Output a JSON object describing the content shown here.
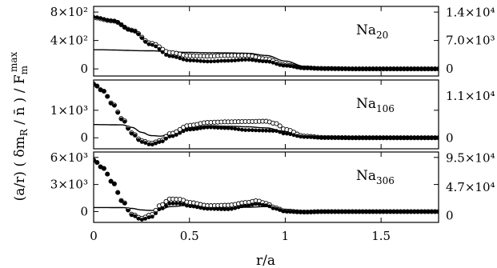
{
  "chart_data": {
    "type": "scatter",
    "xlabel": "r/a",
    "ylabel": "(a/r) ( δm_R / n̄ ) / F_m^max",
    "ylabel_parts": {
      "main": "(a/r) ( δm",
      "sub_R": "R",
      "mid": " / n̄ ) / F",
      "sub_m": "m",
      "sup_max": "max"
    },
    "xlim": [
      0,
      1.8
    ],
    "x_ticks": [
      0,
      0.5,
      1,
      1.5
    ],
    "x_tick_labels": [
      "0",
      "0.5",
      "1",
      "1.5"
    ],
    "grid": false,
    "panels": [
      {
        "label": "Na20",
        "label_base": "Na",
        "label_sub": "20",
        "ylim_left": [
          -100,
          880
        ],
        "left_ticks": [
          0,
          400,
          800
        ],
        "left_tick_labels": [
          "0",
          "4×10²",
          "8×10²"
        ],
        "ylim_right": [
          -1800,
          15500
        ],
        "right_ticks": [
          0,
          7000,
          14000
        ],
        "right_tick_labels": [
          "0",
          "7.0×10³",
          "1.4×10⁴"
        ],
        "series": [
          {
            "marker": "filled-circle",
            "x": [
              0,
              0.1,
              0.2,
              0.3,
              0.4,
              0.5,
              0.6,
              0.7,
              0.8,
              0.9,
              1.0,
              1.1,
              1.2,
              1.4,
              1.6,
              1.8
            ],
            "y": [
              730,
              680,
              540,
              340,
              180,
              120,
              105,
              115,
              130,
              105,
              45,
              15,
              5,
              0,
              0,
              0
            ]
          },
          {
            "marker": "open-circle",
            "x": [
              0,
              0.1,
              0.2,
              0.3,
              0.4,
              0.5,
              0.6,
              0.7,
              0.8,
              0.9,
              1.0,
              1.1,
              1.2,
              1.4,
              1.6,
              1.8
            ],
            "y": [
              720,
              675,
              545,
              360,
              230,
              185,
              180,
              190,
              190,
              140,
              55,
              15,
              5,
              0,
              0,
              0
            ]
          },
          {
            "marker": "line",
            "x": [
              0,
              0.3,
              0.4,
              0.5,
              0.6,
              0.7,
              0.8,
              0.9,
              1.0,
              1.1,
              1.2,
              1.4,
              1.6,
              1.8
            ],
            "y": [
              270,
              255,
              240,
              232,
              228,
              225,
              220,
              190,
              110,
              35,
              10,
              2,
              0,
              0
            ]
          }
        ]
      },
      {
        "label": "Na106",
        "label_base": "Na",
        "label_sub": "106",
        "ylim_left": [
          -400,
          2100
        ],
        "left_ticks": [
          0,
          1000
        ],
        "left_tick_labels": [
          "0",
          "1×10³"
        ],
        "ylim_right": [
          -2800,
          15200
        ],
        "right_ticks": [
          0,
          11000
        ],
        "right_tick_labels": [
          "0",
          "1.1×10⁴"
        ],
        "series": [
          {
            "marker": "filled-circle",
            "x": [
              0,
              0.05,
              0.1,
              0.15,
              0.2,
              0.25,
              0.3,
              0.35,
              0.4,
              0.5,
              0.6,
              0.7,
              0.8,
              0.9,
              0.95,
              1.0,
              1.1,
              1.2,
              1.4,
              1.6,
              1.8
            ],
            "y": [
              1950,
              1700,
              1200,
              650,
              150,
              -150,
              -250,
              -150,
              50,
              300,
              380,
              350,
              280,
              260,
              250,
              150,
              30,
              5,
              0,
              0,
              0
            ]
          },
          {
            "marker": "open-circle",
            "x": [
              0,
              0.05,
              0.1,
              0.15,
              0.2,
              0.25,
              0.3,
              0.35,
              0.4,
              0.5,
              0.6,
              0.7,
              0.8,
              0.9,
              0.95,
              1.0,
              1.1,
              1.2,
              1.4,
              1.6,
              1.8
            ],
            "y": [
              1950,
              1700,
              1220,
              680,
              180,
              -110,
              -200,
              -100,
              150,
              450,
              560,
              580,
              590,
              600,
              520,
              300,
              60,
              10,
              0,
              0,
              0
            ]
          },
          {
            "marker": "line",
            "x": [
              0,
              0.15,
              0.2,
              0.25,
              0.3,
              0.35,
              0.4,
              0.5,
              0.6,
              0.7,
              0.8,
              0.9,
              1.0,
              1.1,
              1.2,
              1.4,
              1.6,
              1.8
            ],
            "y": [
              480,
              470,
              380,
              200,
              80,
              60,
              150,
              360,
              440,
              420,
              400,
              360,
              220,
              60,
              10,
              0,
              0,
              0
            ]
          }
        ]
      },
      {
        "label": "Na306",
        "label_base": "Na",
        "label_sub": "306",
        "ylim_left": [
          -1200,
          6600
        ],
        "left_ticks": [
          0,
          3000,
          6000
        ],
        "left_tick_labels": [
          "0",
          "3×10³",
          "6×10³"
        ],
        "ylim_right": [
          -11000,
          105000
        ],
        "right_ticks": [
          0,
          47000,
          95000
        ],
        "right_tick_labels": [
          "0",
          "4.7×10⁴",
          "9.5×10⁴"
        ],
        "series": [
          {
            "marker": "filled-circle",
            "x": [
              0,
              0.05,
              0.1,
              0.15,
              0.2,
              0.25,
              0.3,
              0.35,
              0.4,
              0.45,
              0.5,
              0.6,
              0.7,
              0.8,
              0.85,
              0.9,
              0.95,
              1.0,
              1.1,
              1.2,
              1.4,
              1.6,
              1.8
            ],
            "y": [
              5700,
              4800,
              3200,
              1100,
              -400,
              -900,
              -600,
              300,
              900,
              900,
              600,
              300,
              250,
              650,
              850,
              700,
              300,
              0,
              -50,
              0,
              0,
              0,
              0
            ]
          },
          {
            "marker": "open-circle",
            "x": [
              0,
              0.05,
              0.1,
              0.15,
              0.2,
              0.25,
              0.3,
              0.35,
              0.4,
              0.45,
              0.5,
              0.6,
              0.7,
              0.8,
              0.85,
              0.9,
              0.95,
              1.0,
              1.1,
              1.2,
              1.4,
              1.6,
              1.8
            ],
            "y": [
              5700,
              4800,
              3200,
              1150,
              -300,
              -750,
              -350,
              700,
              1400,
              1350,
              1000,
              650,
              700,
              1000,
              1200,
              900,
              400,
              50,
              -50,
              0,
              0,
              0,
              0
            ]
          },
          {
            "marker": "line",
            "x": [
              0,
              0.15,
              0.2,
              0.25,
              0.3,
              0.35,
              0.4,
              0.5,
              0.6,
              0.7,
              0.8,
              0.9,
              1.0,
              1.1,
              1.2,
              1.4,
              1.6,
              1.8
            ],
            "y": [
              450,
              440,
              350,
              180,
              120,
              280,
              550,
              700,
              500,
              400,
              480,
              550,
              250,
              40,
              5,
              0,
              0,
              0
            ]
          }
        ]
      }
    ]
  }
}
